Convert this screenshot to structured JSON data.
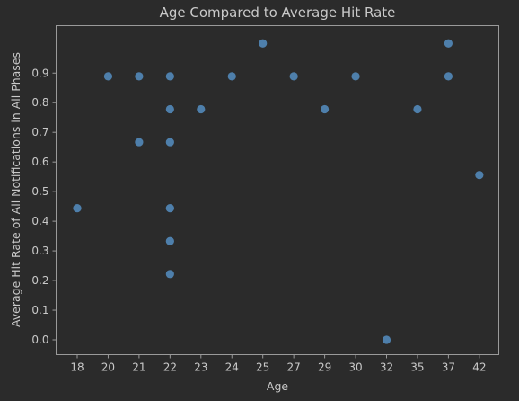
{
  "chart_data": {
    "type": "scatter",
    "title": "Age Compared to Average Hit Rate",
    "xlabel": "Age",
    "ylabel": "Average Hit Rate of All Notifications in All Phases",
    "x_scale": "categorical",
    "categories": [
      "18",
      "20",
      "21",
      "22",
      "23",
      "24",
      "25",
      "27",
      "29",
      "30",
      "32",
      "35",
      "37",
      "42"
    ],
    "ylim": [
      -0.05,
      1.06
    ],
    "yticks": [
      0.0,
      0.1,
      0.2,
      0.3,
      0.4,
      0.5,
      0.6,
      0.7,
      0.8,
      0.9
    ],
    "ytick_labels": [
      "0.0",
      "0.1",
      "0.2",
      "0.3",
      "0.4",
      "0.5",
      "0.6",
      "0.7",
      "0.8",
      "0.9"
    ],
    "grid": false,
    "point_color": "#4e7fab",
    "background_color": "#2b2b2b",
    "series": [
      {
        "points": [
          {
            "x": "18",
            "y": 0.444
          },
          {
            "x": "20",
            "y": 0.889
          },
          {
            "x": "21",
            "y": 0.889
          },
          {
            "x": "21",
            "y": 0.667
          },
          {
            "x": "22",
            "y": 0.889
          },
          {
            "x": "22",
            "y": 0.778
          },
          {
            "x": "22",
            "y": 0.667
          },
          {
            "x": "22",
            "y": 0.444
          },
          {
            "x": "22",
            "y": 0.333
          },
          {
            "x": "22",
            "y": 0.222
          },
          {
            "x": "23",
            "y": 0.778
          },
          {
            "x": "24",
            "y": 0.889
          },
          {
            "x": "25",
            "y": 1.0
          },
          {
            "x": "27",
            "y": 0.889
          },
          {
            "x": "29",
            "y": 0.778
          },
          {
            "x": "30",
            "y": 0.889
          },
          {
            "x": "32",
            "y": 0.0
          },
          {
            "x": "35",
            "y": 0.778
          },
          {
            "x": "37",
            "y": 1.0
          },
          {
            "x": "37",
            "y": 0.889
          },
          {
            "x": "42",
            "y": 0.556
          }
        ]
      }
    ]
  }
}
